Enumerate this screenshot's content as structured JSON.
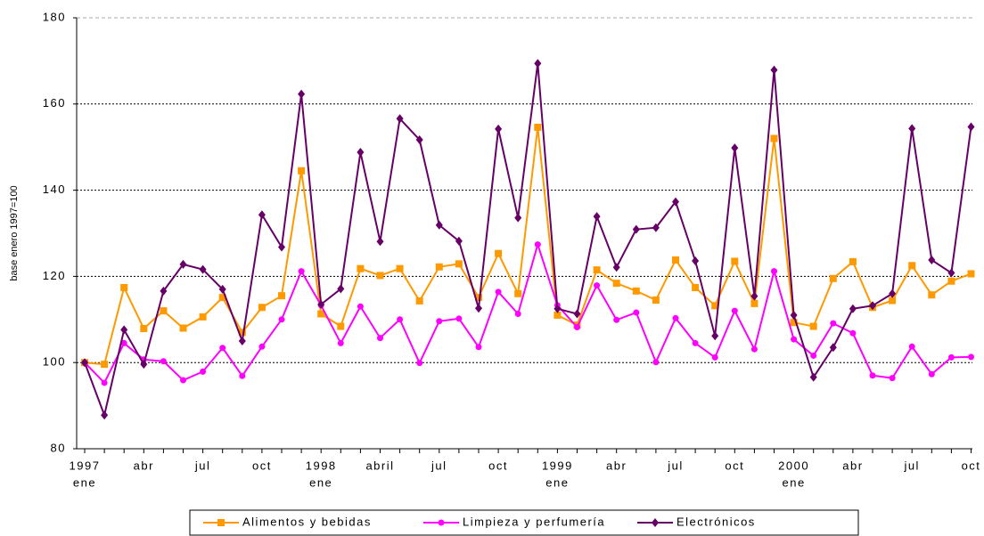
{
  "chart_data": {
    "type": "line",
    "y_label": "base enero 1997=100",
    "categories": [
      "ene",
      null,
      null,
      "abr",
      null,
      null,
      "jul",
      null,
      null,
      "oct",
      null,
      null,
      "ene",
      null,
      null,
      "abril",
      null,
      null,
      "jul",
      null,
      null,
      "oct",
      null,
      null,
      "ene",
      null,
      null,
      "abr",
      null,
      null,
      "jul",
      null,
      null,
      "oct",
      null,
      null,
      "ene",
      null,
      null,
      "abr",
      null,
      null,
      "jul",
      null,
      null,
      "oct"
    ],
    "years": [
      "1997",
      null,
      null,
      null,
      null,
      null,
      null,
      null,
      null,
      null,
      null,
      null,
      "1998",
      null,
      null,
      null,
      null,
      null,
      null,
      null,
      null,
      null,
      null,
      null,
      "1999",
      null,
      null,
      null,
      null,
      null,
      null,
      null,
      null,
      null,
      null,
      null,
      "2000",
      null,
      null,
      null,
      null,
      null,
      null,
      null,
      null,
      null
    ],
    "series": [
      {
        "name": "Alimentos y bebidas",
        "color": "#ff9900",
        "marker": "square",
        "values": [
          100,
          99.6,
          117.4,
          107.9,
          112,
          108,
          110.6,
          115.1,
          107,
          112.8,
          115.5,
          144.5,
          111.3,
          108.4,
          121.8,
          120.2,
          121.8,
          114.3,
          122.2,
          122.9,
          115.1,
          125.3,
          116,
          154.6,
          111,
          108.7,
          121.5,
          118.4,
          116.6,
          114.5,
          123.8,
          117.4,
          113.2,
          123.5,
          113.7,
          152,
          109.3,
          108.4,
          119.5,
          123.4,
          112.8,
          114.4,
          122.5,
          115.7,
          118.9,
          120.6
        ]
      },
      {
        "name": "Limpieza y perfumería",
        "color": "#ff00ff",
        "marker": "circle",
        "values": [
          100,
          95.3,
          104.5,
          100.7,
          100.3,
          95.9,
          97.9,
          103.4,
          96.9,
          103.7,
          110,
          121.2,
          113.3,
          104.5,
          113,
          105.7,
          110,
          99.9,
          109.6,
          110.2,
          103.6,
          116.4,
          111.3,
          127.4,
          113.3,
          108.2,
          117.9,
          109.9,
          111.6,
          100.1,
          110.3,
          104.5,
          101.2,
          112,
          103.1,
          121.2,
          105.4,
          101.6,
          109.1,
          106.8,
          97,
          96.4,
          103.7,
          97.3,
          101.2,
          101.3
        ]
      },
      {
        "name": "Electrónicos",
        "color": "#660066",
        "marker": "diamond",
        "values": [
          100,
          87.8,
          107.6,
          99.6,
          116.6,
          122.8,
          121.6,
          117,
          105,
          134.3,
          126.8,
          162.3,
          113.5,
          117.1,
          148.8,
          128.1,
          156.6,
          151.7,
          131.9,
          128.2,
          112.6,
          154.2,
          133.6,
          169.4,
          112.5,
          111.3,
          133.9,
          122.1,
          130.9,
          131.3,
          137.3,
          123.6,
          106.2,
          149.8,
          115.4,
          167.9,
          111,
          96.6,
          103.5,
          112.5,
          113.2,
          116,
          154.3,
          123.8,
          120.8,
          154.7
        ]
      }
    ],
    "ylim": [
      80,
      180
    ],
    "yticks": [
      80,
      100,
      120,
      140,
      160,
      180
    ],
    "grid": true,
    "legend": "bottom"
  }
}
